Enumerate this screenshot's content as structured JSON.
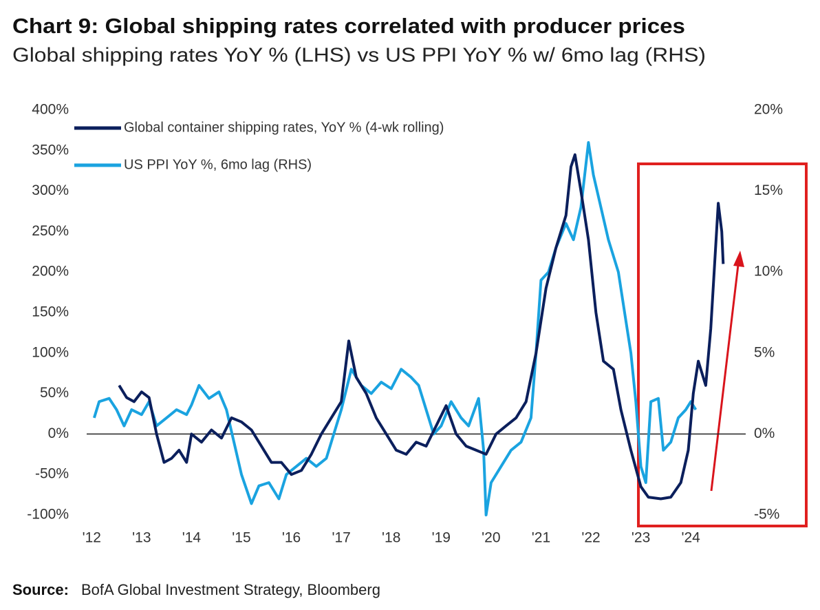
{
  "chart_data": {
    "type": "line",
    "title": "Chart 9: Global shipping rates correlated with producer prices",
    "subtitle": "Global shipping rates YoY % (LHS) vs US PPI YoY % w/ 6mo lag (RHS)",
    "source_label": "Source:",
    "source": "BofA Global Investment Strategy, Bloomberg",
    "legend": "upper left",
    "xlim": [
      2011.9,
      2025.1
    ],
    "xticks": [
      {
        "value": 2012,
        "label": "'12"
      },
      {
        "value": 2013,
        "label": "'13"
      },
      {
        "value": 2014,
        "label": "'14"
      },
      {
        "value": 2015,
        "label": "'15"
      },
      {
        "value": 2016,
        "label": "'16"
      },
      {
        "value": 2017,
        "label": "'17"
      },
      {
        "value": 2018,
        "label": "'18"
      },
      {
        "value": 2019,
        "label": "'19"
      },
      {
        "value": 2020,
        "label": "'20"
      },
      {
        "value": 2021,
        "label": "'21"
      },
      {
        "value": 2022,
        "label": "'22"
      },
      {
        "value": 2023,
        "label": "'23"
      },
      {
        "value": 2024,
        "label": "'24"
      }
    ],
    "ylim": [
      -100,
      400
    ],
    "yticks": [
      {
        "value": 400,
        "label": "400%"
      },
      {
        "value": 350,
        "label": "350%"
      },
      {
        "value": 300,
        "label": "300%"
      },
      {
        "value": 250,
        "label": "250%"
      },
      {
        "value": 200,
        "label": "200%"
      },
      {
        "value": 150,
        "label": "150%"
      },
      {
        "value": 100,
        "label": "100%"
      },
      {
        "value": 50,
        "label": "50%"
      },
      {
        "value": 0,
        "label": "0%"
      },
      {
        "value": -50,
        "label": "-50%"
      },
      {
        "value": -100,
        "label": "-100%"
      }
    ],
    "y2lim": [
      -5,
      20
    ],
    "y2ticks": [
      {
        "value": 20,
        "label": "20%"
      },
      {
        "value": 15,
        "label": "15%"
      },
      {
        "value": 10,
        "label": "10%"
      },
      {
        "value": 5,
        "label": "5%"
      },
      {
        "value": 0,
        "label": "0%"
      },
      {
        "value": -5,
        "label": "-5%"
      }
    ],
    "series": [
      {
        "name": "Global container shipping rates, YoY % (4-wk rolling)",
        "color": "#0b1f5c",
        "axis": "y",
        "x": [
          2012.55,
          2012.7,
          2012.85,
          2013.0,
          2013.15,
          2013.3,
          2013.45,
          2013.6,
          2013.75,
          2013.9,
          2014.0,
          2014.2,
          2014.4,
          2014.6,
          2014.8,
          2015.0,
          2015.2,
          2015.4,
          2015.6,
          2015.8,
          2016.0,
          2016.2,
          2016.4,
          2016.6,
          2016.8,
          2017.0,
          2017.15,
          2017.3,
          2017.5,
          2017.7,
          2017.9,
          2018.1,
          2018.3,
          2018.5,
          2018.7,
          2018.9,
          2019.1,
          2019.3,
          2019.5,
          2019.7,
          2019.9,
          2020.1,
          2020.3,
          2020.5,
          2020.7,
          2020.9,
          2021.1,
          2021.3,
          2021.5,
          2021.6,
          2021.68,
          2021.8,
          2021.95,
          2022.1,
          2022.25,
          2022.45,
          2022.6,
          2022.8,
          2023.0,
          2023.15,
          2023.4,
          2023.6,
          2023.8,
          2023.95,
          2024.05,
          2024.15,
          2024.3,
          2024.4,
          2024.55,
          2024.62,
          2024.65
        ],
        "values": [
          60,
          45,
          40,
          52,
          45,
          0,
          -35,
          -30,
          -20,
          -35,
          0,
          -10,
          5,
          -5,
          20,
          15,
          5,
          -15,
          -35,
          -35,
          -50,
          -45,
          -25,
          0,
          20,
          40,
          115,
          70,
          50,
          20,
          0,
          -20,
          -25,
          -10,
          -15,
          10,
          35,
          0,
          -15,
          -20,
          -25,
          0,
          10,
          20,
          40,
          100,
          180,
          230,
          270,
          330,
          345,
          300,
          240,
          150,
          90,
          80,
          30,
          -20,
          -65,
          -78,
          -80,
          -78,
          -60,
          -20,
          50,
          90,
          60,
          130,
          285,
          250,
          210
        ]
      },
      {
        "name": "US PPI YoY %, 6mo lag (RHS)",
        "color": "#1aa3e0",
        "axis": "y2",
        "x": [
          2012.05,
          2012.15,
          2012.35,
          2012.5,
          2012.65,
          2012.8,
          2013.0,
          2013.15,
          2013.3,
          2013.5,
          2013.7,
          2013.9,
          2014.0,
          2014.15,
          2014.35,
          2014.55,
          2014.7,
          2014.85,
          2015.0,
          2015.2,
          2015.35,
          2015.55,
          2015.75,
          2015.9,
          2016.1,
          2016.3,
          2016.5,
          2016.7,
          2016.85,
          2017.0,
          2017.2,
          2017.4,
          2017.6,
          2017.8,
          2018.0,
          2018.2,
          2018.4,
          2018.55,
          2018.7,
          2018.85,
          2019.0,
          2019.2,
          2019.4,
          2019.55,
          2019.75,
          2019.85,
          2019.9,
          2020.0,
          2020.2,
          2020.4,
          2020.6,
          2020.8,
          2020.9,
          2021.0,
          2021.15,
          2021.3,
          2021.5,
          2021.65,
          2021.8,
          2021.95,
          2022.05,
          2022.2,
          2022.35,
          2022.55,
          2022.7,
          2022.8,
          2022.9,
          2023.0,
          2023.1,
          2023.2,
          2023.35,
          2023.45,
          2023.6,
          2023.75,
          2023.9,
          2024.0,
          2024.1
        ],
        "values": [
          1,
          2,
          2.2,
          1.5,
          0.5,
          1.5,
          1.2,
          2,
          0.5,
          1,
          1.5,
          1.2,
          1.8,
          3,
          2.2,
          2.6,
          1.5,
          -0.5,
          -2.5,
          -4.3,
          -3.2,
          -3,
          -4,
          -2.5,
          -2,
          -1.5,
          -2,
          -1.5,
          0,
          1.5,
          4,
          3,
          2.5,
          3.2,
          2.8,
          4,
          3.5,
          3,
          1.5,
          0,
          0.5,
          2,
          1,
          0.5,
          2.2,
          -1,
          -5,
          -3,
          -2,
          -1,
          -0.5,
          1,
          5,
          9.5,
          10,
          11.5,
          13,
          12,
          14,
          18,
          16,
          14,
          12,
          10,
          7,
          5,
          2,
          -2,
          -3,
          2,
          2.2,
          -1,
          -0.5,
          1,
          1.5,
          2,
          1.5
        ]
      }
    ]
  }
}
